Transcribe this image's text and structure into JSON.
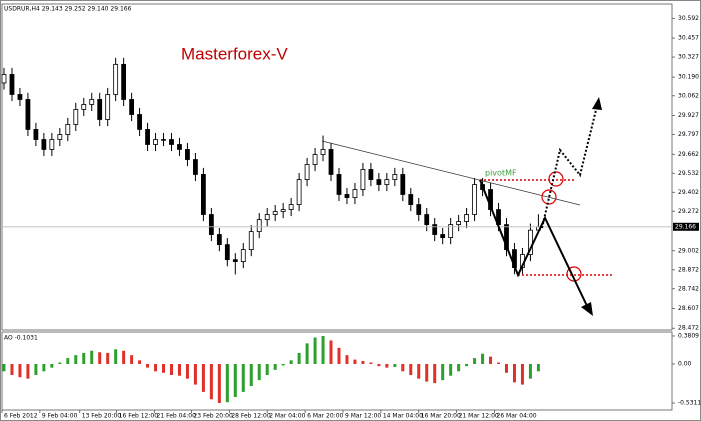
{
  "chart_data": [
    {
      "type": "candlestick",
      "title": "USDRUR,H4  29.143 29.252 29.140 29.166",
      "watermark": "Masterforex-V",
      "pivot_label": "pivotMF",
      "color": "#000000",
      "up_color": "#ffffff",
      "down_color": "#000000",
      "grid": false,
      "xlim": [
        -0.25,
        83.75
      ],
      "xticks": [
        {
          "value": -0.25,
          "label": "6 Feb 2012"
        },
        {
          "value": 4.5,
          "label": "9 Feb 04:00"
        },
        {
          "value": 9.5,
          "label": "13 Feb 20:00"
        },
        {
          "value": 14.125,
          "label": "16 Feb 12:00"
        },
        {
          "value": 18.875,
          "label": "21 Feb 04:00"
        },
        {
          "value": 23.5,
          "label": "23 Feb 20:00"
        },
        {
          "value": 28.25,
          "label": "28 Feb 12:00"
        },
        {
          "value": 33,
          "label": "2 Mar 04:00"
        },
        {
          "value": 37.75,
          "label": "6 Mar 20:00"
        },
        {
          "value": 42.5,
          "label": "9 Mar 12:00"
        },
        {
          "value": 47.25,
          "label": "14 Mar 04:00"
        },
        {
          "value": 52,
          "label": "16 Mar 20:00"
        },
        {
          "value": 56.75,
          "label": "21 Mar 12:00"
        },
        {
          "value": 61.5,
          "label": "26 Mar 04:00"
        }
      ],
      "ylim": [
        28.46,
        30.69
      ],
      "yticks": [
        30.592,
        30.457,
        30.327,
        {
          "value": 30.19,
          "label": "30.190"
        },
        30.062,
        29.927,
        29.797,
        29.662,
        29.532,
        29.402,
        29.272,
        29.002,
        28.872,
        28.742,
        28.607,
        28.472
      ],
      "open": [
        30.15,
        30.208,
        30.071,
        30.037,
        29.832,
        29.763,
        29.695,
        29.763,
        29.797,
        29.866,
        29.969,
        30.003,
        30.037,
        29.9,
        30.071,
        30.277,
        30.037,
        29.934,
        29.832,
        29.729,
        29.763,
        29.763,
        29.729,
        29.695,
        29.626,
        29.524,
        29.25,
        29.113,
        29.044,
        28.941,
        28.928,
        29.01,
        29.133,
        29.215,
        29.25,
        29.27,
        29.284,
        29.318,
        29.489,
        29.592,
        29.66,
        29.695,
        29.524,
        29.387,
        29.366,
        29.421,
        29.558,
        29.489,
        29.455,
        29.489,
        29.524,
        29.387,
        29.318,
        29.25,
        29.181,
        29.113,
        29.092,
        29.181,
        29.202,
        29.25,
        29.455,
        29.421,
        29.284,
        29.181,
        29.01,
        28.887,
        28.976,
        29.143
      ],
      "high": [
        30.253,
        30.253,
        30.116,
        30.082,
        29.877,
        29.808,
        29.808,
        29.842,
        29.911,
        30.014,
        30.048,
        30.082,
        30.082,
        30.116,
        30.322,
        30.322,
        30.082,
        29.979,
        29.877,
        29.808,
        29.808,
        29.808,
        29.774,
        29.74,
        29.671,
        29.569,
        29.295,
        29.158,
        29.089,
        28.986,
        29.055,
        29.178,
        29.26,
        29.295,
        29.315,
        29.329,
        29.363,
        29.534,
        29.637,
        29.705,
        29.79,
        29.74,
        29.569,
        29.432,
        29.466,
        29.603,
        29.603,
        29.534,
        29.534,
        29.569,
        29.569,
        29.432,
        29.363,
        29.295,
        29.226,
        29.158,
        29.226,
        29.247,
        29.295,
        29.5,
        29.5,
        29.466,
        29.329,
        29.226,
        29.055,
        29.021,
        29.188,
        29.252
      ],
      "low": [
        30.105,
        30.026,
        29.992,
        29.787,
        29.718,
        29.65,
        29.65,
        29.718,
        29.752,
        29.821,
        29.924,
        29.958,
        29.855,
        29.855,
        30.026,
        29.992,
        29.889,
        29.787,
        29.684,
        29.684,
        29.718,
        29.684,
        29.65,
        29.581,
        29.479,
        29.205,
        29.068,
        28.999,
        28.896,
        28.84,
        28.883,
        28.965,
        29.088,
        29.17,
        29.205,
        29.225,
        29.239,
        29.273,
        29.444,
        29.547,
        29.615,
        29.479,
        29.342,
        29.321,
        29.321,
        29.376,
        29.444,
        29.41,
        29.41,
        29.444,
        29.342,
        29.273,
        29.205,
        29.136,
        29.068,
        29.047,
        29.047,
        29.136,
        29.157,
        29.205,
        29.376,
        29.239,
        29.136,
        28.965,
        28.842,
        28.842,
        28.931,
        29.14
      ],
      "close": [
        30.208,
        30.071,
        30.037,
        29.832,
        29.763,
        29.695,
        29.763,
        29.797,
        29.866,
        29.969,
        30.003,
        30.037,
        29.9,
        30.071,
        30.277,
        30.037,
        29.934,
        29.832,
        29.729,
        29.763,
        29.763,
        29.729,
        29.695,
        29.626,
        29.524,
        29.25,
        29.113,
        29.044,
        28.941,
        28.928,
        29.01,
        29.133,
        29.215,
        29.25,
        29.27,
        29.284,
        29.318,
        29.489,
        29.592,
        29.66,
        29.695,
        29.524,
        29.387,
        29.366,
        29.421,
        29.558,
        29.489,
        29.455,
        29.489,
        29.524,
        29.387,
        29.318,
        29.25,
        29.181,
        29.113,
        29.092,
        29.181,
        29.202,
        29.25,
        29.455,
        29.421,
        29.284,
        29.181,
        29.01,
        28.887,
        28.976,
        29.143,
        29.166
      ]
    },
    {
      "type": "bar",
      "title": "AO -0.1031",
      "up_color": "#2ca02c",
      "down_color": "#e0302a",
      "ylim": [
        -0.626,
        0.435
      ],
      "yticks": [
        0.3809,
        {
          "value": 0,
          "label": "0.00"
        },
        -0.5311
      ],
      "values": [
        -0.1,
        -0.15,
        -0.18,
        -0.2,
        -0.15,
        -0.1,
        -0.05,
        0.02,
        0.08,
        0.12,
        0.15,
        0.18,
        0.16,
        0.15,
        0.2,
        0.18,
        0.12,
        0.05,
        -0.05,
        -0.1,
        -0.12,
        -0.15,
        -0.16,
        -0.2,
        -0.28,
        -0.38,
        -0.48,
        -0.53,
        -0.52,
        -0.45,
        -0.38,
        -0.3,
        -0.22,
        -0.15,
        -0.08,
        -0.02,
        0.05,
        0.15,
        0.28,
        0.36,
        0.38,
        0.32,
        0.22,
        0.12,
        0.06,
        0.04,
        0.02,
        -0.03,
        -0.05,
        -0.04,
        -0.1,
        -0.15,
        -0.2,
        -0.24,
        -0.26,
        -0.22,
        -0.16,
        -0.1,
        -0.03,
        0.08,
        0.14,
        0.1,
        0.02,
        -0.12,
        -0.25,
        -0.28,
        -0.2,
        -0.1
      ]
    }
  ]
}
